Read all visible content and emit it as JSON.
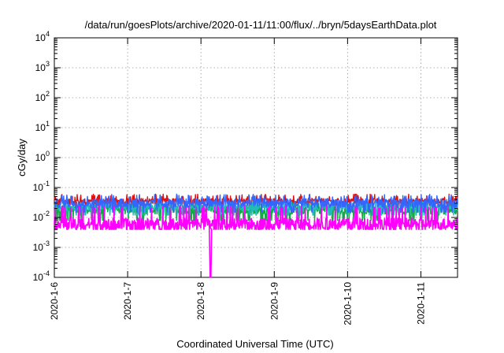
{
  "chart_data": {
    "type": "line",
    "title": "/data/run/goesPlots/archive/2020-01-11/11:00/flux/../bryn/5daysEarthData.plot",
    "xlabel": "Coordinated Universal Time (UTC)",
    "ylabel": "cGy/day",
    "y_scale": "log",
    "ylim": [
      0.0001,
      10000
    ],
    "xlim_days": [
      0,
      5.5
    ],
    "y_ticks": [
      {
        "base": "10",
        "exp": "-4"
      },
      {
        "base": "10",
        "exp": "-3"
      },
      {
        "base": "10",
        "exp": "-2"
      },
      {
        "base": "10",
        "exp": "-1"
      },
      {
        "base": "10",
        "exp": "0"
      },
      {
        "base": "10",
        "exp": "1"
      },
      {
        "base": "10",
        "exp": "2"
      },
      {
        "base": "10",
        "exp": "3"
      },
      {
        "base": "10",
        "exp": "4"
      }
    ],
    "x_ticks": [
      "2020-1-6",
      "2020-1-7",
      "2020-1-8",
      "2020-1-9",
      "2020-1-10",
      "2020-1-11"
    ],
    "grid": true,
    "legend": "none",
    "series": [
      {
        "color": "#dd1111",
        "typical": 0.035,
        "range": [
          0.025,
          0.06
        ]
      },
      {
        "color": "#11aa44",
        "typical": 0.018,
        "range": [
          0.008,
          0.03
        ]
      },
      {
        "color": "#22bbbb",
        "typical": 0.022,
        "range": [
          0.012,
          0.035
        ]
      },
      {
        "color": "#3366ff",
        "typical": 0.03,
        "range": [
          0.015,
          0.06
        ]
      },
      {
        "color": "#ff00ff",
        "typical": 0.006,
        "range": [
          0.004,
          0.025
        ],
        "dip": {
          "x": "2020-01-08 03:00",
          "y": 0.0001
        }
      }
    ]
  }
}
